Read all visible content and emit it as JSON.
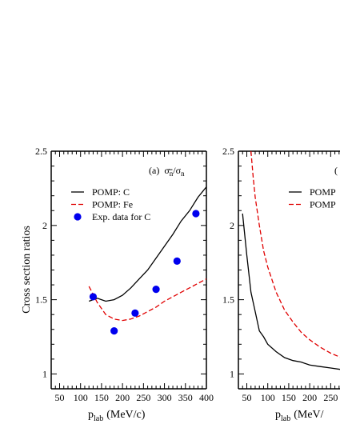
{
  "chart_data": [
    {
      "type": "line",
      "panel_label": "(a)",
      "panel_title_main": "σ",
      "panel_title_sub1": "n",
      "panel_title_bar": "−",
      "panel_title_sub2": "n",
      "xlabel_main": "p",
      "xlabel_sub": "lab",
      "xlabel_unit": "(MeV/c)",
      "ylabel": "Cross section ratios",
      "xlim": [
        30,
        400
      ],
      "ylim": [
        0.9,
        2.5
      ],
      "xticks": [
        50,
        100,
        150,
        200,
        250,
        300,
        350,
        400
      ],
      "xtick_labels": [
        "50",
        "100",
        "150",
        "200",
        "250",
        "300",
        "350",
        "400"
      ],
      "yticks": [
        1,
        1.5,
        2,
        2.5
      ],
      "ytick_labels": [
        "1",
        "1.5",
        "2",
        "2.5"
      ],
      "legend_position": "top-left",
      "series": [
        {
          "name": "POMP: C",
          "style": "solid",
          "color": "#000000",
          "x": [
            120,
            140,
            160,
            180,
            200,
            220,
            240,
            260,
            280,
            300,
            320,
            340,
            360,
            380,
            400
          ],
          "y": [
            1.49,
            1.51,
            1.49,
            1.5,
            1.53,
            1.58,
            1.64,
            1.7,
            1.78,
            1.86,
            1.94,
            2.03,
            2.1,
            2.19,
            2.26
          ]
        },
        {
          "name": "POMP: Fe",
          "style": "dashed",
          "color": "#e00000",
          "x": [
            120,
            140,
            160,
            180,
            200,
            220,
            240,
            260,
            280,
            300,
            320,
            340,
            360,
            380,
            400
          ],
          "y": [
            1.59,
            1.48,
            1.4,
            1.37,
            1.36,
            1.37,
            1.39,
            1.42,
            1.45,
            1.49,
            1.52,
            1.55,
            1.58,
            1.61,
            1.64
          ]
        },
        {
          "name": "Exp. data for C",
          "style": "markers",
          "color": "#0000ee",
          "x": [
            130,
            180,
            230,
            280,
            330,
            375
          ],
          "y": [
            1.52,
            1.29,
            1.41,
            1.57,
            1.76,
            2.08
          ]
        }
      ]
    },
    {
      "type": "line",
      "panel_label": "(",
      "xlabel_main": "p",
      "xlabel_sub": "lab",
      "xlabel_unit": "(MeV/",
      "xlim": [
        30,
        400
      ],
      "ylim": [
        0.9,
        2.5
      ],
      "xticks": [
        50,
        100,
        150,
        200,
        250
      ],
      "xtick_labels": [
        "50",
        "100",
        "150",
        "200",
        "250"
      ],
      "yticks": [
        1,
        1.5,
        2,
        2.5
      ],
      "ytick_labels": [
        "1",
        "1.5",
        "2",
        "2.5"
      ],
      "legend_position": "top-right",
      "series": [
        {
          "name": "POMP",
          "style": "solid",
          "color": "#000000",
          "x": [
            40,
            50,
            60,
            70,
            80,
            90,
            100,
            120,
            140,
            160,
            180,
            200,
            225,
            250,
            275
          ],
          "y": [
            2.08,
            1.8,
            1.55,
            1.42,
            1.29,
            1.25,
            1.2,
            1.15,
            1.11,
            1.09,
            1.08,
            1.06,
            1.05,
            1.04,
            1.03
          ]
        },
        {
          "name": "POMP",
          "style": "dashed",
          "color": "#e00000",
          "x": [
            60,
            65,
            70,
            80,
            90,
            100,
            120,
            140,
            160,
            180,
            200,
            225,
            250,
            275
          ],
          "y": [
            2.5,
            2.33,
            2.19,
            2.0,
            1.83,
            1.72,
            1.55,
            1.43,
            1.35,
            1.28,
            1.23,
            1.18,
            1.14,
            1.11
          ]
        }
      ]
    }
  ]
}
